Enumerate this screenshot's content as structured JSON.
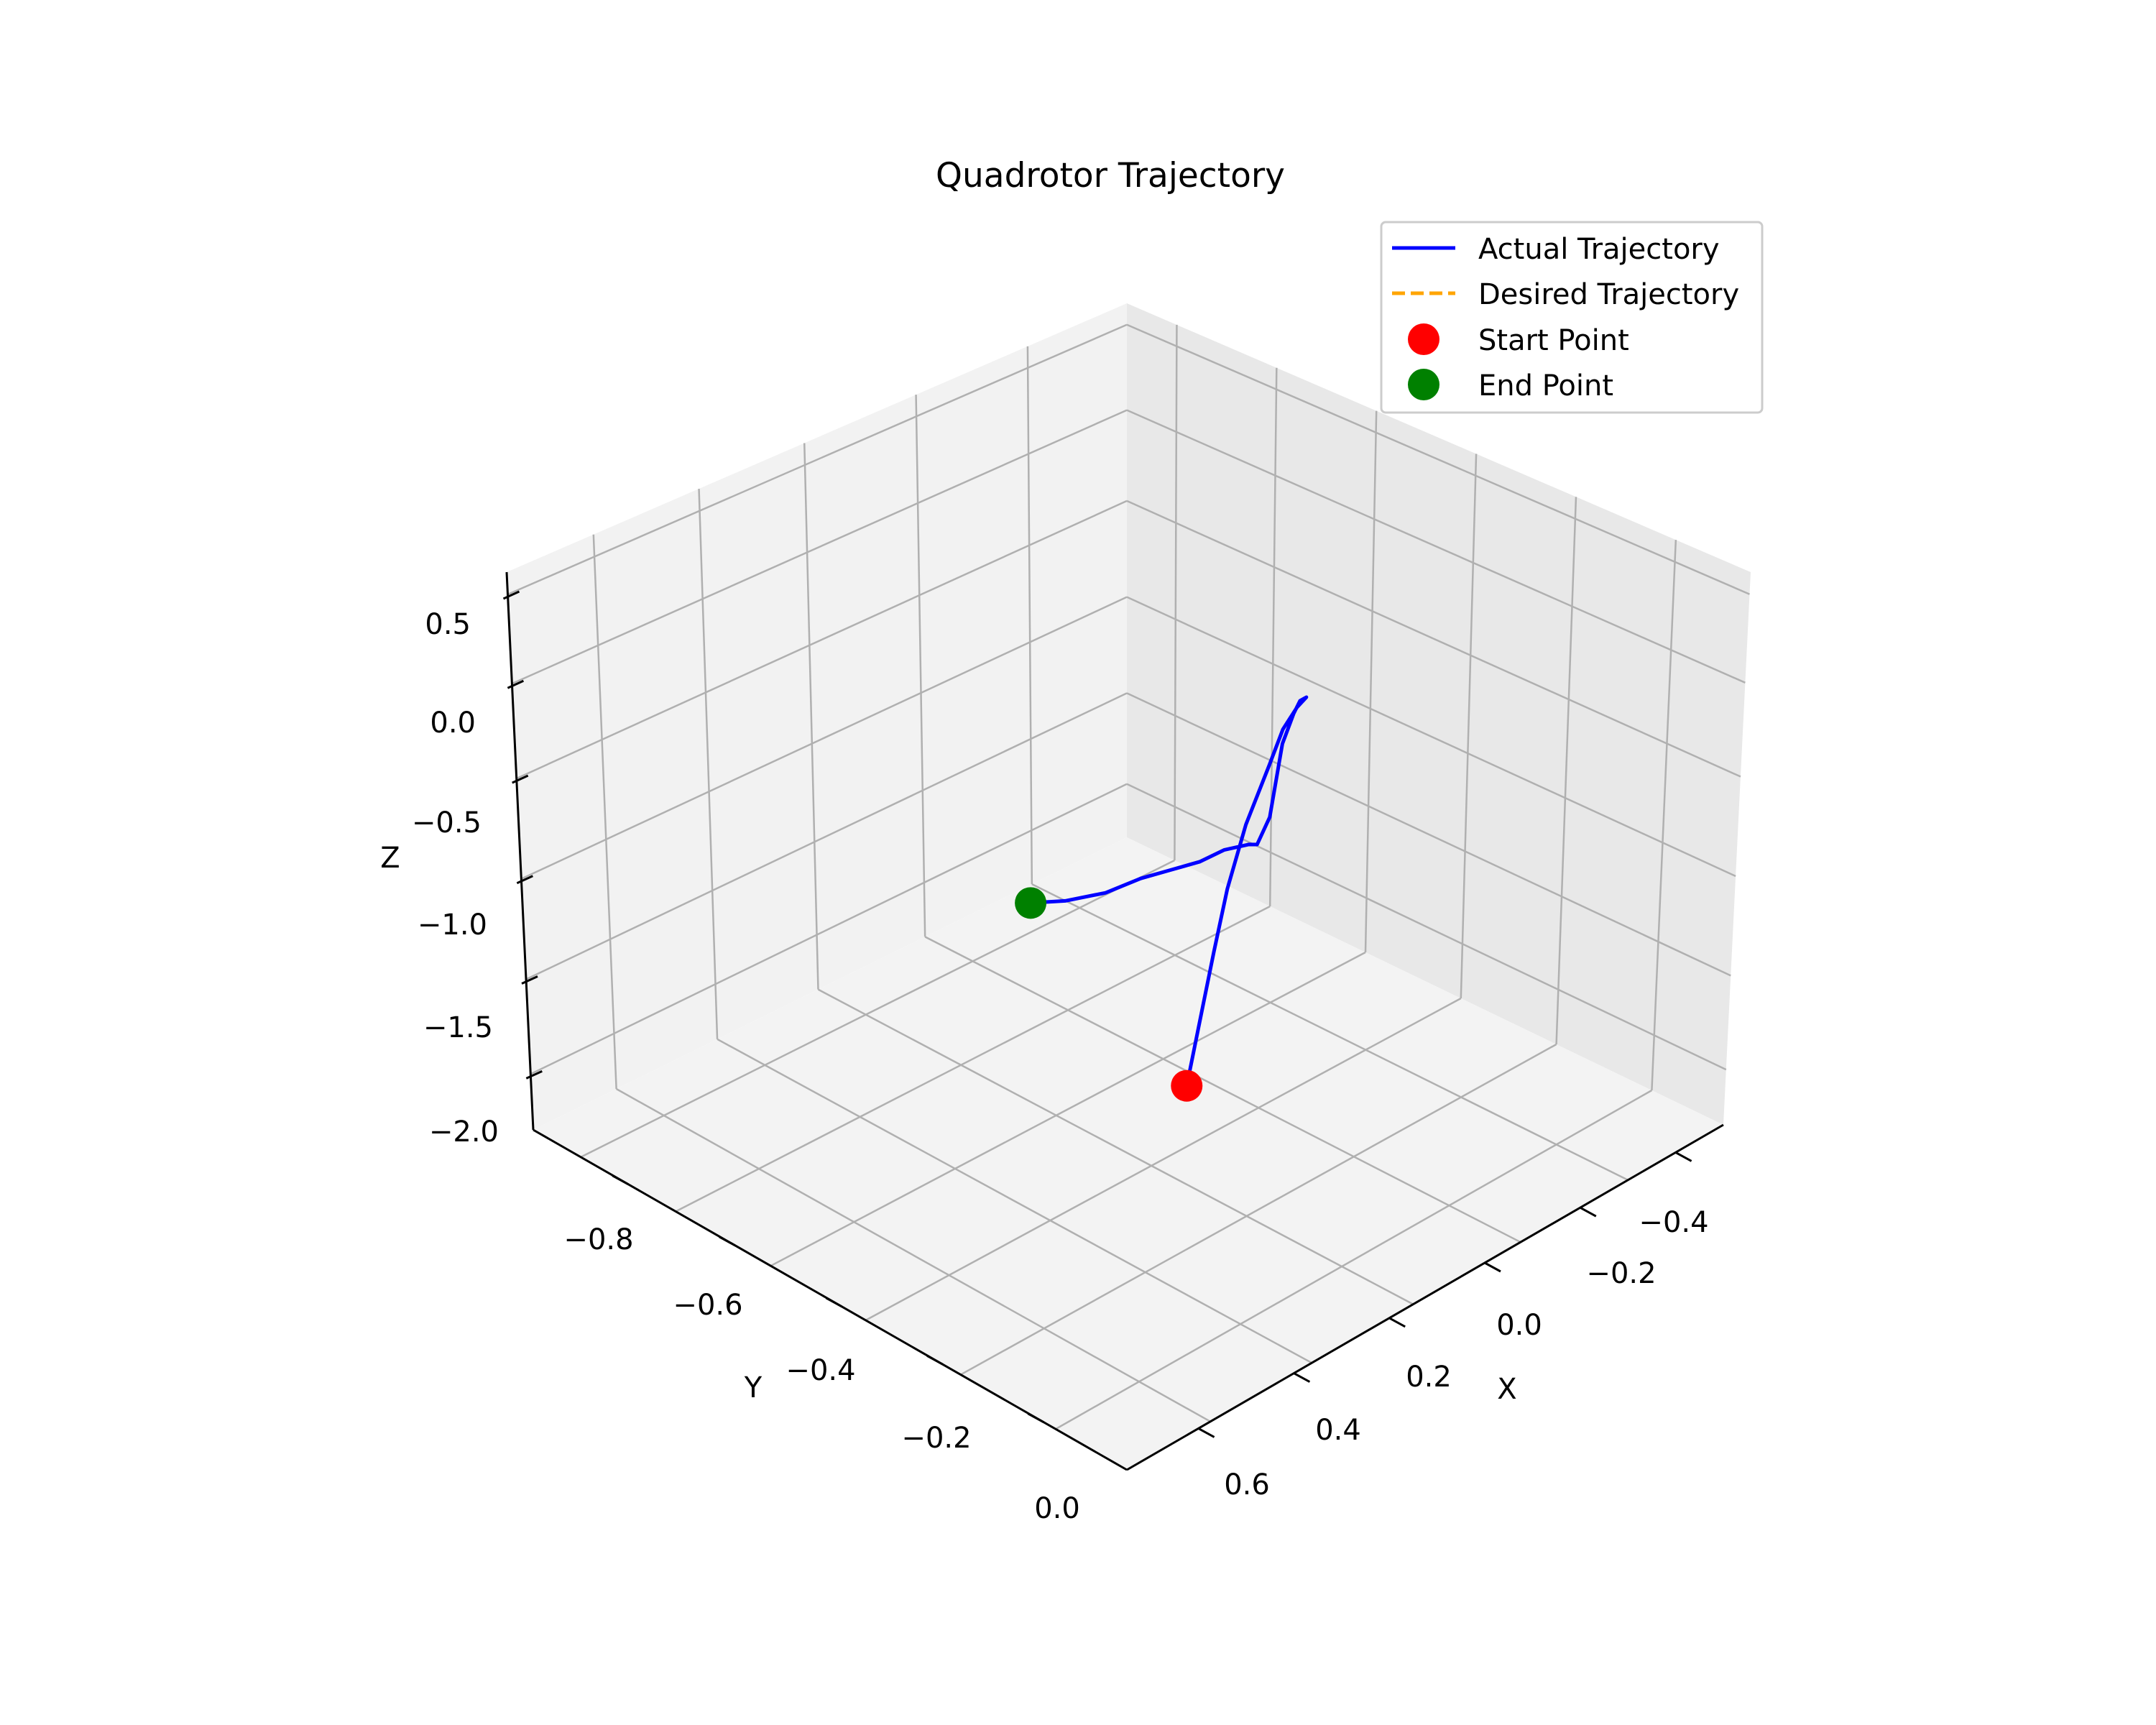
{
  "chart_data": {
    "type": "line3d",
    "title": "Quadrotor Trajectory",
    "xlabel": "X",
    "ylabel": "Y",
    "zlabel": "Z",
    "xlim": [
      -0.5,
      0.7
    ],
    "ylim": [
      -1.0,
      0.05
    ],
    "zlim": [
      -2.2,
      0.7
    ],
    "xticks": [
      "−0.4",
      "−0.2",
      "0.0",
      "0.2",
      "0.4",
      "0.6"
    ],
    "yticks": [
      "−0.8",
      "−0.6",
      "−0.4",
      "−0.2",
      "0.0"
    ],
    "zticks": [
      "0.5",
      "0.0",
      "−0.5",
      "−1.0",
      "−1.5",
      "−2.0"
    ],
    "grid": true,
    "legend_position": "top-right",
    "legend": [
      {
        "label": "Actual Trajectory",
        "style": "solid-line",
        "color": "#0000ff"
      },
      {
        "label": "Desired Trajectory",
        "style": "dashed-line",
        "color": "#ffa500"
      },
      {
        "label": "Start Point",
        "style": "marker",
        "color": "#ff0000"
      },
      {
        "label": "End Point",
        "style": "marker",
        "color": "#008000"
      }
    ],
    "series": [
      {
        "name": "Actual Trajectory",
        "color": "#0000ff",
        "points": [
          [
            0.5,
            -0.02,
            -0.55
          ],
          [
            0.45,
            -0.04,
            -0.3
          ],
          [
            0.4,
            -0.06,
            -0.05
          ],
          [
            0.35,
            -0.08,
            0.18
          ],
          [
            0.29,
            -0.1,
            0.4
          ],
          [
            0.22,
            -0.12,
            0.58
          ],
          [
            0.17,
            -0.14,
            0.66
          ],
          [
            0.13,
            -0.15,
            0.7
          ],
          [
            0.1,
            -0.16,
            0.69
          ],
          [
            0.09,
            -0.18,
            0.62
          ],
          [
            0.08,
            -0.2,
            0.5
          ],
          [
            0.08,
            -0.22,
            0.3
          ],
          [
            0.07,
            -0.24,
            0.05
          ],
          [
            0.06,
            -0.26,
            -0.2
          ],
          [
            0.04,
            -0.3,
            -0.45
          ],
          [
            0.0,
            -0.35,
            -0.6
          ],
          [
            -0.03,
            -0.42,
            -0.8
          ],
          [
            -0.05,
            -0.48,
            -1.0
          ],
          [
            -0.07,
            -0.55,
            -1.2
          ],
          [
            -0.09,
            -0.62,
            -1.4
          ],
          [
            -0.11,
            -0.7,
            -1.65
          ],
          [
            -0.12,
            -0.78,
            -1.85
          ],
          [
            -0.13,
            -0.85,
            -2.0
          ]
        ]
      }
    ],
    "start_point": {
      "label": "Start Point",
      "x": 0.5,
      "y": -0.02,
      "z": -0.55,
      "color": "#ff0000"
    },
    "end_point": {
      "label": "End Point",
      "x": -0.13,
      "y": -0.85,
      "z": -2.0,
      "color": "#008000"
    }
  }
}
